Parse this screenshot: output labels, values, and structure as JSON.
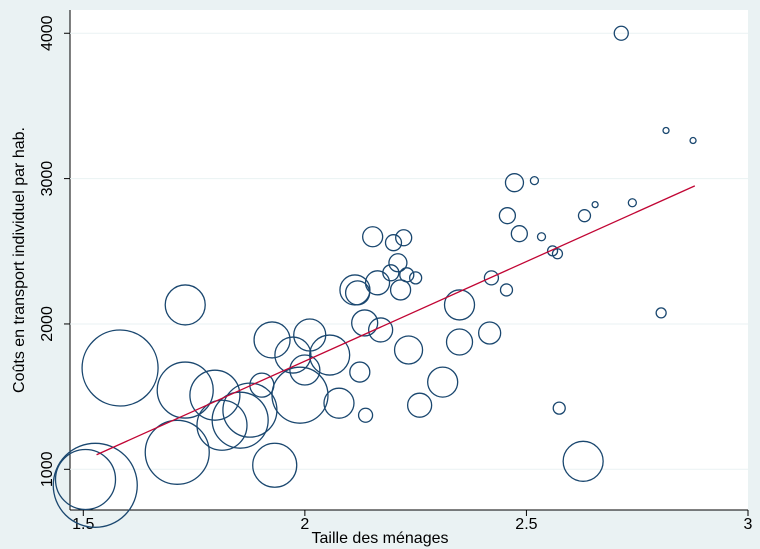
{
  "chart_data": {
    "type": "bubble",
    "x_label": "Taille des ménages",
    "y_label": "Coûts en transport individuel par hab.",
    "xlim": [
      1.47,
      3.0
    ],
    "ylim": [
      720,
      4160
    ],
    "xticks": [
      1.5,
      2,
      2.5,
      3
    ],
    "yticks": [
      1000,
      2000,
      3000,
      4000
    ],
    "grid": true,
    "series": [
      {
        "color": "#1a476f",
        "x": [
          1.527,
          1.505,
          1.583,
          1.73,
          1.712,
          1.73,
          1.797,
          1.813,
          1.854,
          1.876,
          1.903,
          1.926,
          1.932,
          1.989,
          1.973,
          2.011,
          2.056,
          2.0,
          2.077,
          2.113,
          2.119,
          2.124,
          2.135,
          2.137,
          2.153,
          2.164,
          2.171,
          2.194,
          2.2,
          2.21,
          2.216,
          2.223,
          2.23,
          2.234,
          2.25,
          2.259,
          2.311,
          2.349,
          2.349,
          2.417,
          2.421,
          2.455,
          2.457,
          2.473,
          2.484,
          2.518,
          2.534,
          2.559,
          2.57,
          2.574,
          2.628,
          2.631,
          2.655,
          2.714,
          2.739,
          2.804,
          2.815,
          2.876
        ],
        "values": [
          890,
          930,
          1697,
          2131,
          1117,
          1545,
          1510,
          1303,
          1338,
          1407,
          1579,
          1890,
          1028,
          1510,
          1786,
          1924,
          1786,
          1683,
          1455,
          2234,
          2214,
          1669,
          2007,
          1372,
          2600,
          2283,
          1959,
          2352,
          2559,
          2421,
          2234,
          2593,
          2338,
          1821,
          2317,
          1441,
          1600,
          2131,
          1876,
          1938,
          2317,
          2234,
          2745,
          2972,
          2621,
          2986,
          2600,
          2503,
          2483,
          1421,
          1055,
          2745,
          2821,
          4000,
          2834,
          2076,
          3331,
          3262
        ],
        "size": [
          42,
          30,
          38,
          20,
          32,
          28,
          25,
          25,
          28,
          27,
          12,
          18,
          22,
          28,
          18,
          16,
          20,
          15,
          15,
          15,
          12,
          10,
          13,
          7,
          10,
          12,
          12,
          8,
          8,
          9,
          10,
          8,
          7,
          14,
          6,
          12,
          15,
          15,
          13,
          11,
          7,
          6,
          8,
          9,
          8,
          4,
          4,
          5,
          5,
          6,
          20,
          6,
          3,
          7,
          4,
          5,
          3,
          3
        ]
      }
    ],
    "fit_line": {
      "color": "#c10534",
      "x": [
        1.53,
        2.88
      ],
      "values": [
        1100,
        2950
      ]
    }
  }
}
